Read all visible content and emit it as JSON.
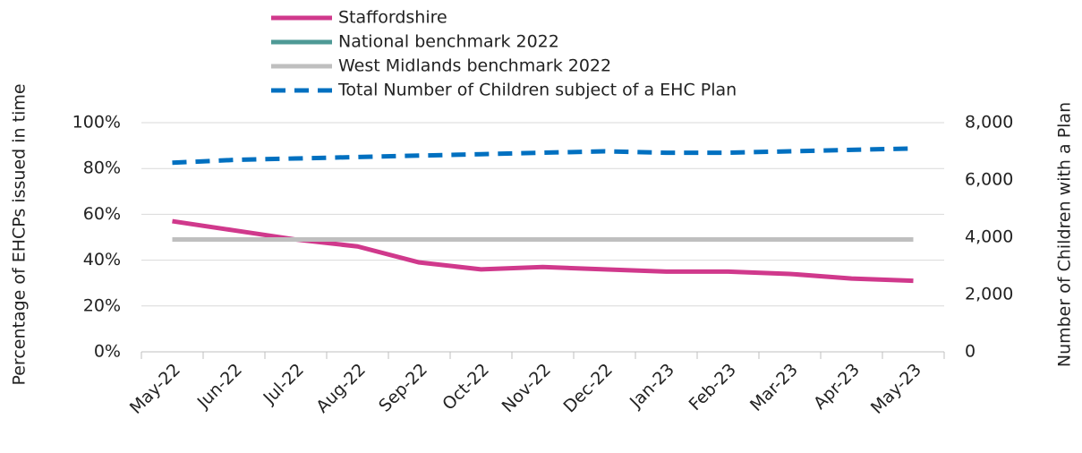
{
  "chart_data": {
    "type": "line",
    "categories": [
      "May-22",
      "Jun-22",
      "Jul-22",
      "Aug-22",
      "Sep-22",
      "Oct-22",
      "Nov-22",
      "Dec-22",
      "Jan-23",
      "Feb-23",
      "Mar-23",
      "Apr-23",
      "May-23"
    ],
    "series": [
      {
        "name": "Staffordshire",
        "color": "#d0398c",
        "values": [
          57,
          53,
          49,
          46,
          39,
          36,
          37,
          36,
          35,
          35,
          34,
          32,
          31
        ]
      },
      {
        "name": "National benchmark 2022",
        "color": "#4e9a96",
        "values": [
          49,
          49,
          49,
          49,
          49,
          49,
          49,
          49,
          49,
          49,
          49,
          49,
          49
        ]
      },
      {
        "name": "West Midlands benchmark 2022",
        "color": "#bfbfbf",
        "values": [
          49,
          49,
          49,
          49,
          49,
          49,
          49,
          49,
          49,
          49,
          49,
          49,
          49
        ]
      },
      {
        "name": "Total Number of Children subject of a EHC Plan",
        "color": "#0070c0",
        "dashed": true,
        "axis": "y2",
        "values": [
          6600,
          6700,
          6750,
          6800,
          6850,
          6900,
          6950,
          7000,
          6950,
          6950,
          7000,
          7050,
          7100
        ]
      }
    ],
    "ylabel": "Percentage of EHCPs issued in time",
    "y2label": "Number of Children with a Plan",
    "ylim": [
      0,
      100
    ],
    "yticks": [
      {
        "value": 0,
        "label": "0%"
      },
      {
        "value": 20,
        "label": "20%"
      },
      {
        "value": 40,
        "label": "40%"
      },
      {
        "value": 60,
        "label": "60%"
      },
      {
        "value": 80,
        "label": "80%"
      },
      {
        "value": 100,
        "label": "100%"
      }
    ],
    "y2lim": [
      0,
      8000
    ],
    "y2ticks": [
      0,
      {
        "value": 2000,
        "label": "2,000"
      },
      {
        "value": 4000,
        "label": "4,000"
      },
      {
        "value": 6000,
        "label": "6,000"
      },
      {
        "value": 8000,
        "label": "8,000"
      }
    ],
    "grid": true,
    "legend": "top"
  }
}
